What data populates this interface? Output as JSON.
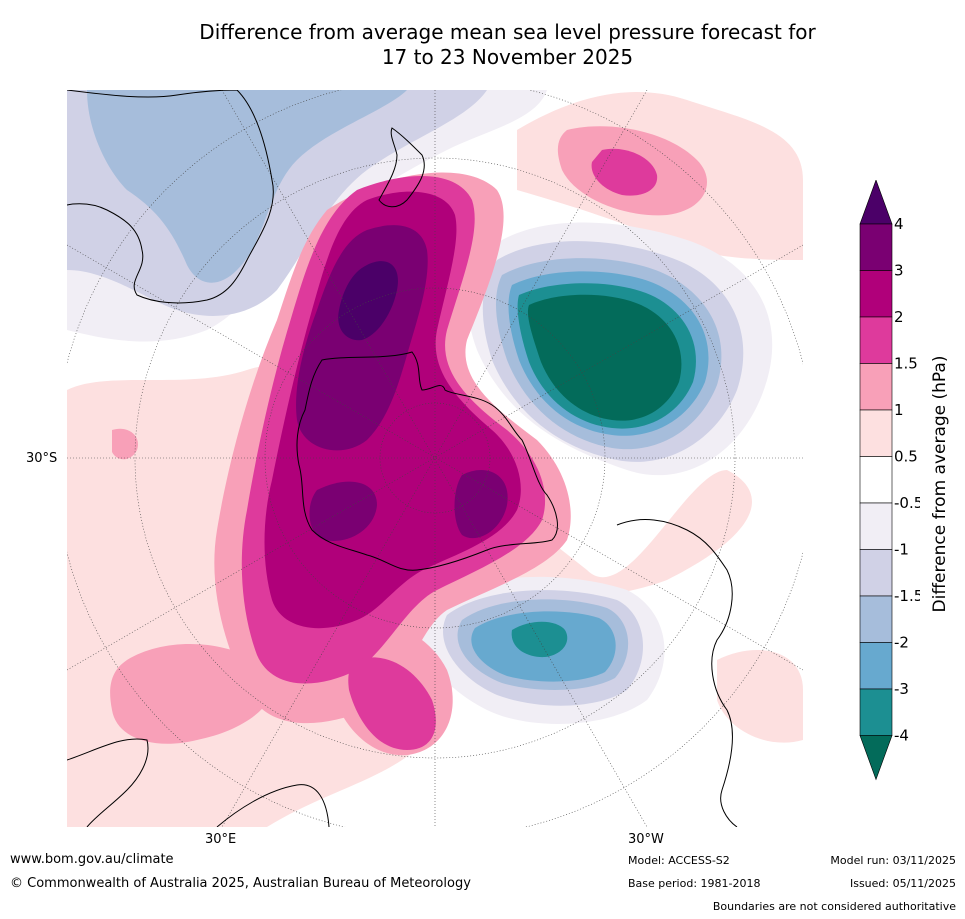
{
  "title": {
    "line1": "Difference from average mean sea level pressure forecast for",
    "line2": "17 to 23 November 2025"
  },
  "map": {
    "axis_labels": {
      "lat_30s": "30°S",
      "lon_30e": "30°E",
      "lon_30w": "30°W"
    },
    "field": "Mean sea level pressure anomaly",
    "features": [
      "Antarctica",
      "South America",
      "Africa",
      "Australia",
      "New Zealand"
    ]
  },
  "colorbar": {
    "title": "Difference from average (hPa)",
    "levels": [
      "4",
      "3",
      "2",
      "1.5",
      "1",
      "0.5",
      "-0.5",
      "-1",
      "-1.5",
      "-2",
      "-3",
      "-4"
    ],
    "colors": [
      "#4b0068",
      "#7a0072",
      "#b0007a",
      "#de3a9c",
      "#f8a0b8",
      "#fde0e0",
      "#ffffff",
      "#f1eef5",
      "#d0d1e6",
      "#a6bddb",
      "#67a9cf",
      "#1c8f92",
      "#036b5a"
    ]
  },
  "footer": {
    "website": "www.bom.gov.au/climate",
    "copyright": "© Commonwealth of Australia 2025, Australian Bureau of Meteorology",
    "model": "Model: ACCESS-S2",
    "base_period": "Base period: 1981-2018",
    "model_run": "Model run: 03/11/2025",
    "issued": "Issued: 05/11/2025",
    "disclaimer": "Boundaries are not considered authoritative"
  }
}
